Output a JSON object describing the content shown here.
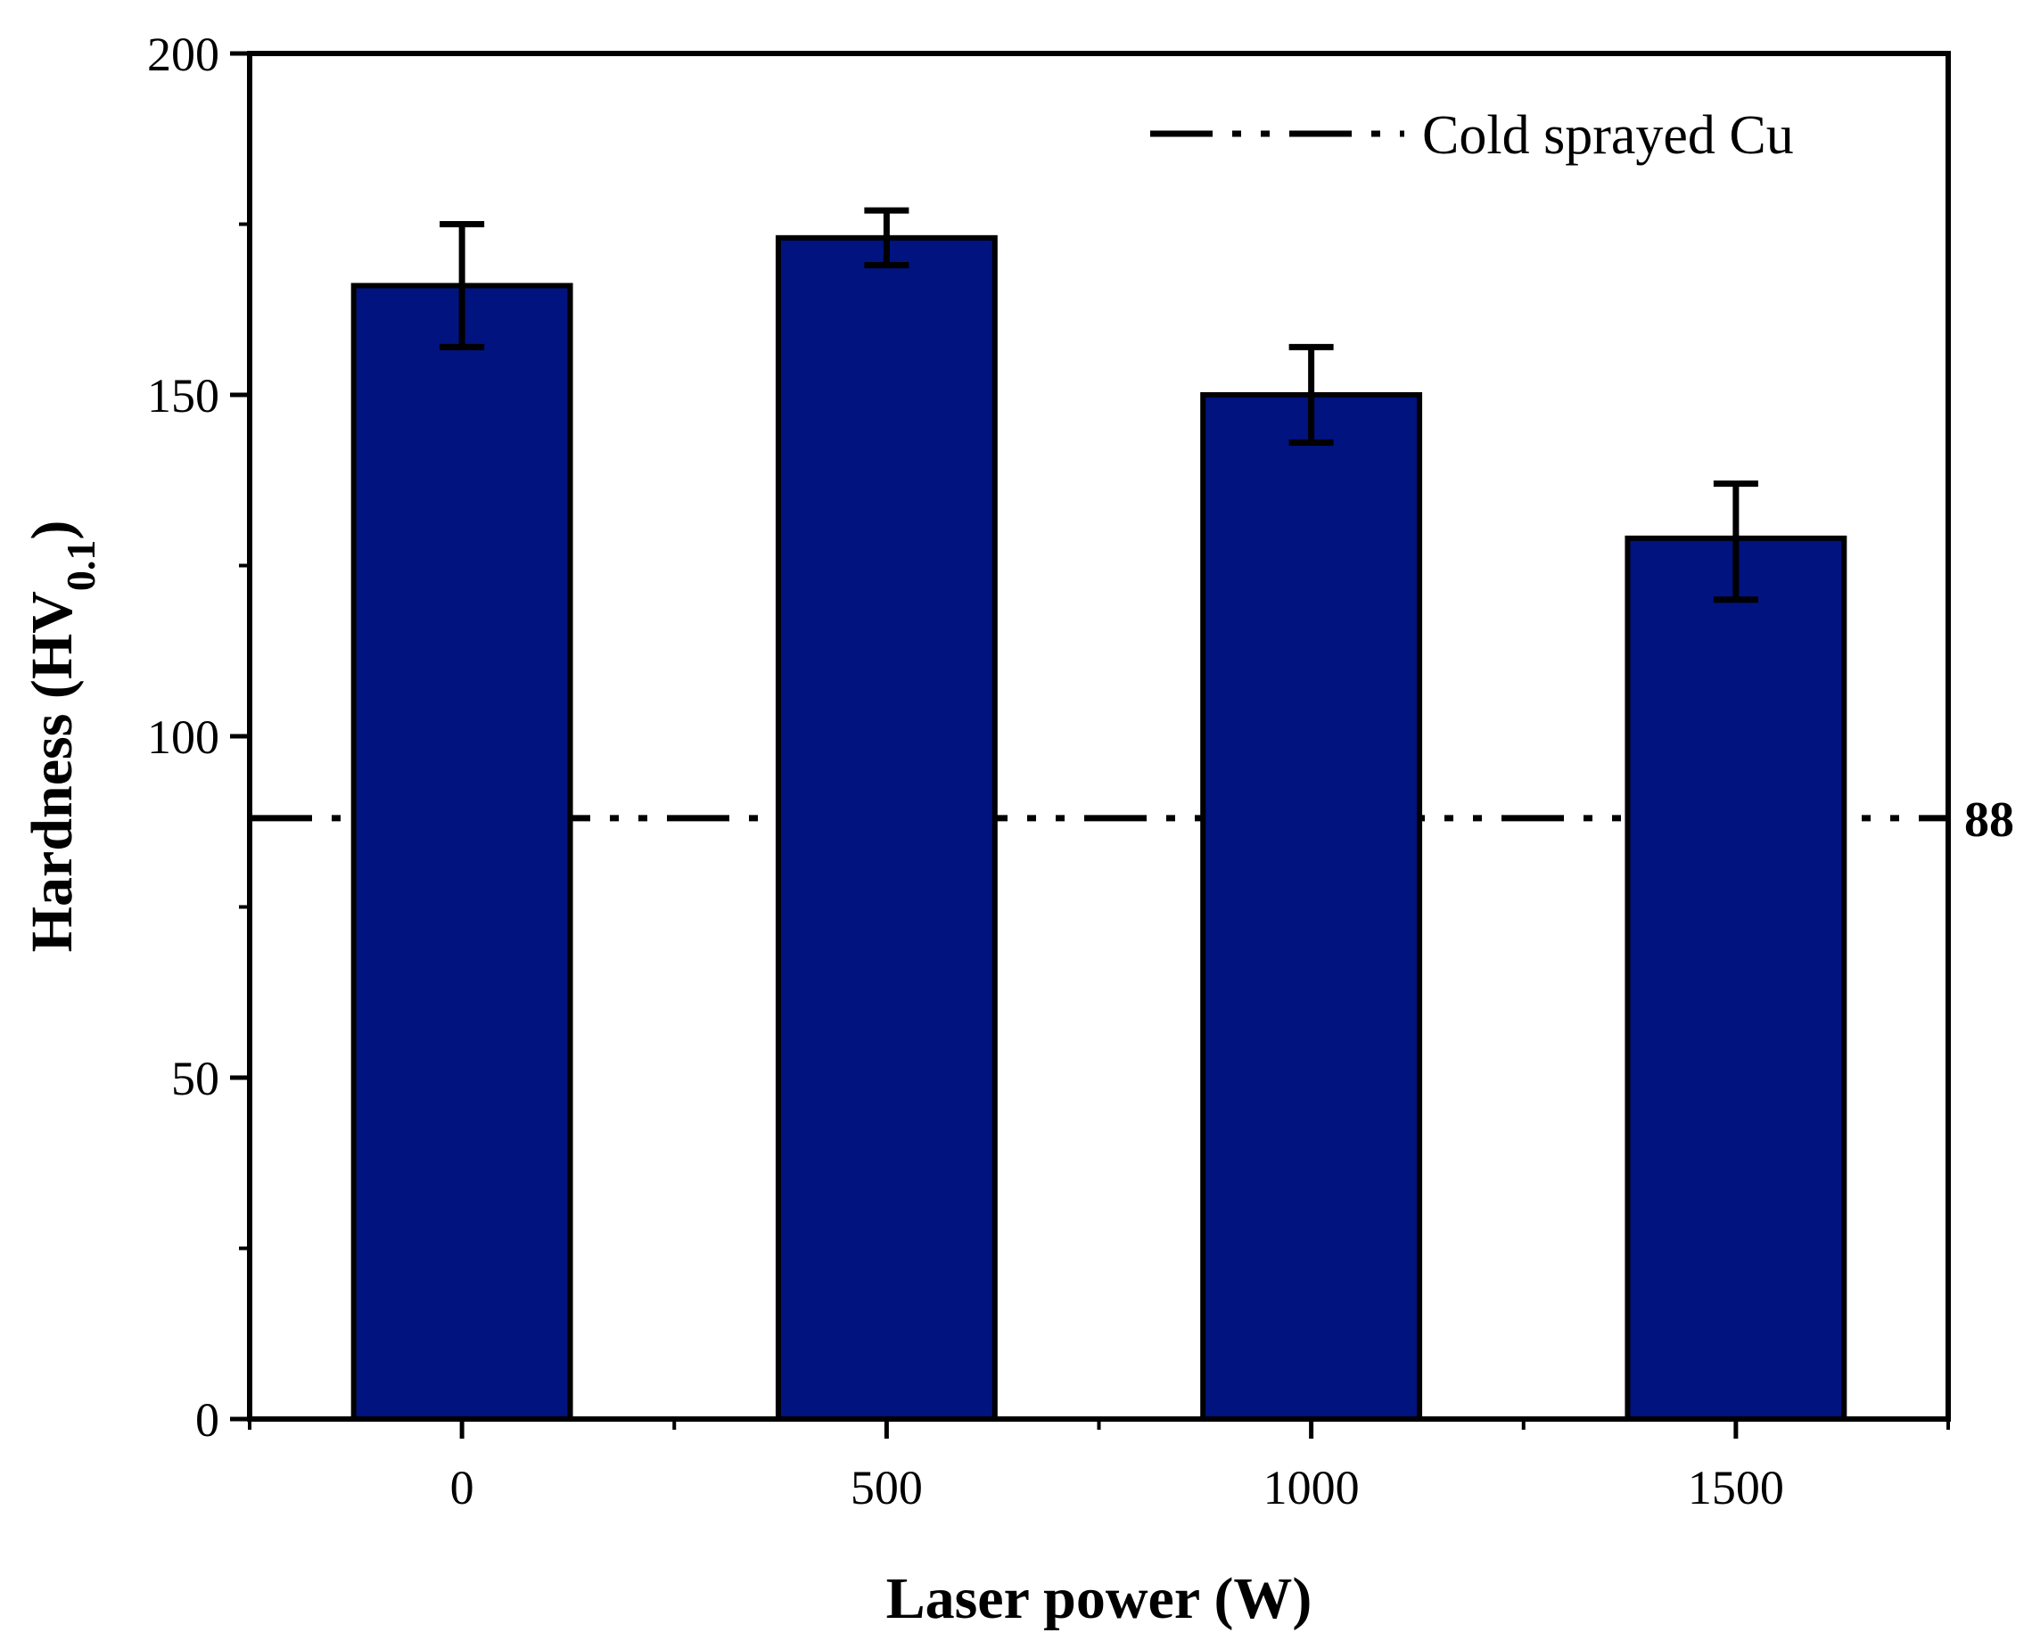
{
  "chart_data": {
    "type": "bar",
    "categories": [
      "0",
      "500",
      "1000",
      "1500"
    ],
    "values": [
      166,
      173,
      150,
      129
    ],
    "errors": [
      {
        "low": 157,
        "high": 175
      },
      {
        "low": 169,
        "high": 177
      },
      {
        "low": 143,
        "high": 157
      },
      {
        "low": 120,
        "high": 137
      }
    ],
    "xlabel": "Laser power (W)",
    "ylabel": "Hardness (HV",
    "ylabel_sub": "0.1",
    "ylabel_end": ")",
    "ylim": [
      0,
      200
    ],
    "yticks": [
      0,
      50,
      100,
      150,
      200
    ],
    "bar_color": "#00137f",
    "reference": {
      "value": 88,
      "label": "88",
      "legend": "Cold sprayed Cu",
      "style": "dash-dot-dot"
    },
    "legend_position": "top-right"
  }
}
